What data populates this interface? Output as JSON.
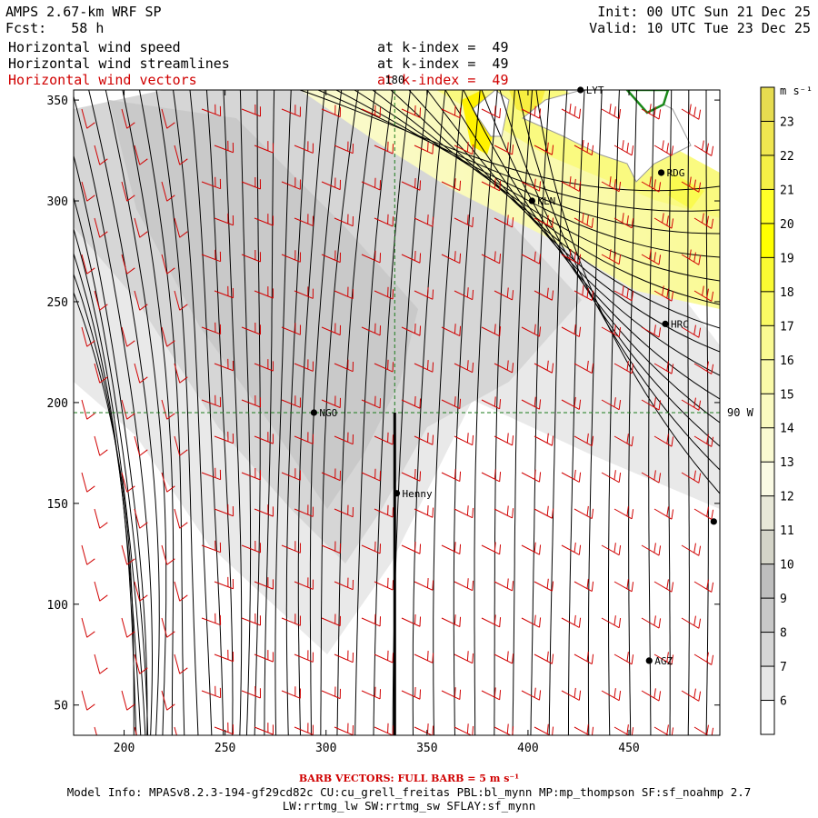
{
  "header": {
    "model": "AMPS 2.67-km WRF SP",
    "forecast_label": "Fcst:",
    "forecast_hours": "58 h",
    "init": "Init: 00 UTC Sun 21 Dec 25",
    "valid": "Valid: 10 UTC Tue 23 Dec 25",
    "fields": [
      {
        "name": "Horizontal wind speed",
        "level": "at k-index =  49",
        "color": "#000000"
      },
      {
        "name": "Horizontal wind streamlines",
        "level": "at k-index =  49",
        "color": "#000000"
      },
      {
        "name": "Horizontal wind vectors",
        "level": "at k-index =  49",
        "color": "#d00000"
      }
    ]
  },
  "map": {
    "x_range": [
      175,
      495
    ],
    "y_range": [
      35,
      355
    ],
    "x_ticks": [
      "200",
      "250",
      "300",
      "350",
      "400",
      "450"
    ],
    "y_ticks": [
      "50",
      "100",
      "150",
      "200",
      "250",
      "300",
      "350"
    ],
    "meridian_label": "180",
    "parallel_label": "90 W",
    "meridian_x": 334,
    "parallel_y": 195,
    "stations": [
      {
        "id": "LYT",
        "x": 426,
        "y": 355
      },
      {
        "id": "RDG",
        "x": 466,
        "y": 314
      },
      {
        "id": "KLN",
        "x": 402,
        "y": 300
      },
      {
        "id": "HRC",
        "x": 468,
        "y": 239
      },
      {
        "id": "NGO",
        "x": 294,
        "y": 195
      },
      {
        "id": "Henny",
        "x": 335,
        "y": 155
      },
      {
        "id": "AGZ",
        "x": 460,
        "y": 72
      },
      {
        "id": "",
        "x": 492,
        "y": 141
      }
    ]
  },
  "colorbar": {
    "unit": "m s⁻¹",
    "levels": [
      "6",
      "7",
      "8",
      "9",
      "10",
      "11",
      "12",
      "13",
      "14",
      "15",
      "16",
      "17",
      "18",
      "19",
      "20",
      "21",
      "22",
      "23"
    ],
    "colors": [
      "#ffffff",
      "#e6e6e6",
      "#d6d6d6",
      "#c8c8c8",
      "#bebebe",
      "#d4d4c8",
      "#e8e8d8",
      "#fafae4",
      "#fafad2",
      "#fafac0",
      "#fafaa8",
      "#fafa92",
      "#fafa64",
      "#fafa32",
      "#ffff00",
      "#ffff28",
      "#f5f046",
      "#f0e650",
      "#e6dc50"
    ]
  },
  "footer": {
    "barb_note": "BARB VECTORS:  FULL BARB = 5 m s⁻¹",
    "model_info": "Model Info: MPASv8.2.3-194-gf29cd82c CU:cu_grell_freitas PBL:bl_mynn MP:mp_thompson SF:sf_noahmp 2.7",
    "model_info2": "LW:rrtmg_lw SW:rrtmg_sw SFLAY:sf_mynn"
  }
}
